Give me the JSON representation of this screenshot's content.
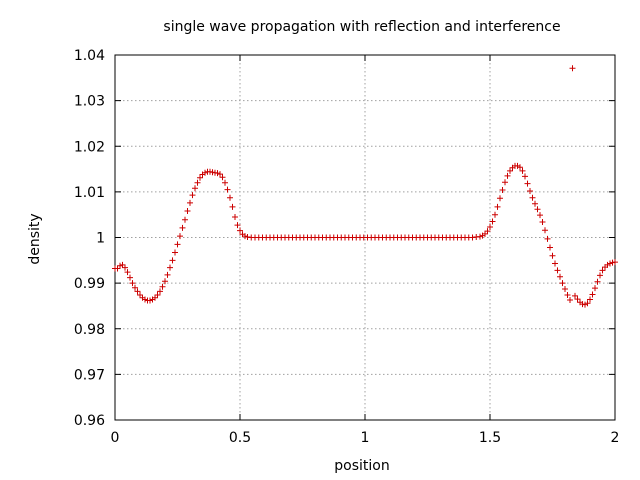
{
  "chart_data": {
    "type": "scatter",
    "title": "single wave propagation with reflection and interference",
    "xlabel": "position",
    "ylabel": "density",
    "xlim": [
      0,
      2
    ],
    "ylim": [
      0.96,
      1.04
    ],
    "xticks": [
      "0",
      "0.5",
      "1",
      "1.5",
      "2"
    ],
    "yticks": [
      "0.96",
      "0.97",
      "0.98",
      "0.99",
      "1",
      "1.01",
      "1.02",
      "1.03",
      "1.04"
    ],
    "grid": true,
    "marker": "+",
    "marker_color": "#cc0000",
    "series": [
      {
        "points": [
          [
            0.0,
            0.9932
          ],
          [
            0.01,
            0.9932
          ],
          [
            0.02,
            0.9938
          ],
          [
            0.03,
            0.994
          ],
          [
            0.04,
            0.9934
          ],
          [
            0.05,
            0.9924
          ],
          [
            0.06,
            0.9912
          ],
          [
            0.07,
            0.99
          ],
          [
            0.08,
            0.989
          ],
          [
            0.09,
            0.9882
          ],
          [
            0.1,
            0.9874
          ],
          [
            0.11,
            0.9868
          ],
          [
            0.12,
            0.9864
          ],
          [
            0.13,
            0.9862
          ],
          [
            0.14,
            0.9862
          ],
          [
            0.15,
            0.9864
          ],
          [
            0.16,
            0.9868
          ],
          [
            0.17,
            0.9874
          ],
          [
            0.18,
            0.9882
          ],
          [
            0.19,
            0.9892
          ],
          [
            0.2,
            0.9904
          ],
          [
            0.21,
            0.9918
          ],
          [
            0.22,
            0.9934
          ],
          [
            0.23,
            0.995
          ],
          [
            0.24,
            0.9967
          ],
          [
            0.25,
            0.9985
          ],
          [
            0.26,
            1.0003
          ],
          [
            0.27,
            1.0021
          ],
          [
            0.28,
            1.0039
          ],
          [
            0.29,
            1.0058
          ],
          [
            0.3,
            1.0076
          ],
          [
            0.31,
            1.0093
          ],
          [
            0.32,
            1.0108
          ],
          [
            0.33,
            1.012
          ],
          [
            0.34,
            1.0131
          ],
          [
            0.35,
            1.0138
          ],
          [
            0.36,
            1.0142
          ],
          [
            0.37,
            1.0144
          ],
          [
            0.38,
            1.0144
          ],
          [
            0.39,
            1.0143
          ],
          [
            0.4,
            1.0142
          ],
          [
            0.41,
            1.0141
          ],
          [
            0.42,
            1.0139
          ],
          [
            0.43,
            1.0132
          ],
          [
            0.44,
            1.012
          ],
          [
            0.45,
            1.0105
          ],
          [
            0.46,
            1.0087
          ],
          [
            0.47,
            1.0067
          ],
          [
            0.48,
            1.0045
          ],
          [
            0.49,
            1.0027
          ],
          [
            0.5,
            1.0015
          ],
          [
            0.51,
            1.0007
          ],
          [
            0.52,
            1.0003
          ],
          [
            0.53,
            1.0001
          ],
          [
            0.545,
            1.0
          ],
          [
            0.56,
            1.0
          ],
          [
            0.575,
            1.0
          ],
          [
            0.59,
            1.0
          ],
          [
            0.605,
            1.0
          ],
          [
            0.62,
            1.0
          ],
          [
            0.635,
            1.0
          ],
          [
            0.65,
            1.0
          ],
          [
            0.665,
            1.0
          ],
          [
            0.68,
            1.0
          ],
          [
            0.695,
            1.0
          ],
          [
            0.71,
            1.0
          ],
          [
            0.725,
            1.0
          ],
          [
            0.74,
            1.0
          ],
          [
            0.755,
            1.0
          ],
          [
            0.77,
            1.0
          ],
          [
            0.785,
            1.0
          ],
          [
            0.8,
            1.0
          ],
          [
            0.815,
            1.0
          ],
          [
            0.83,
            1.0
          ],
          [
            0.845,
            1.0
          ],
          [
            0.86,
            1.0
          ],
          [
            0.875,
            1.0
          ],
          [
            0.89,
            1.0
          ],
          [
            0.905,
            1.0
          ],
          [
            0.92,
            1.0
          ],
          [
            0.935,
            1.0
          ],
          [
            0.95,
            1.0
          ],
          [
            0.965,
            1.0
          ],
          [
            0.98,
            1.0
          ],
          [
            0.995,
            1.0
          ],
          [
            1.01,
            1.0
          ],
          [
            1.025,
            1.0
          ],
          [
            1.04,
            1.0
          ],
          [
            1.055,
            1.0
          ],
          [
            1.07,
            1.0
          ],
          [
            1.085,
            1.0
          ],
          [
            1.1,
            1.0
          ],
          [
            1.115,
            1.0
          ],
          [
            1.13,
            1.0
          ],
          [
            1.145,
            1.0
          ],
          [
            1.16,
            1.0
          ],
          [
            1.175,
            1.0
          ],
          [
            1.19,
            1.0
          ],
          [
            1.205,
            1.0
          ],
          [
            1.22,
            1.0
          ],
          [
            1.235,
            1.0
          ],
          [
            1.25,
            1.0
          ],
          [
            1.265,
            1.0
          ],
          [
            1.28,
            1.0
          ],
          [
            1.295,
            1.0
          ],
          [
            1.31,
            1.0
          ],
          [
            1.325,
            1.0
          ],
          [
            1.34,
            1.0
          ],
          [
            1.355,
            1.0
          ],
          [
            1.37,
            1.0
          ],
          [
            1.385,
            1.0
          ],
          [
            1.4,
            1.0
          ],
          [
            1.415,
            1.0
          ],
          [
            1.43,
            1.0
          ],
          [
            1.445,
            1.0001
          ],
          [
            1.46,
            1.0002
          ],
          [
            1.47,
            1.0004
          ],
          [
            1.48,
            1.0008
          ],
          [
            1.49,
            1.0014
          ],
          [
            1.5,
            1.0023
          ],
          [
            1.51,
            1.0035
          ],
          [
            1.52,
            1.005
          ],
          [
            1.53,
            1.0067
          ],
          [
            1.54,
            1.0086
          ],
          [
            1.55,
            1.0104
          ],
          [
            1.56,
            1.0121
          ],
          [
            1.57,
            1.0135
          ],
          [
            1.58,
            1.0146
          ],
          [
            1.59,
            1.0153
          ],
          [
            1.6,
            1.0157
          ],
          [
            1.61,
            1.0157
          ],
          [
            1.62,
            1.0154
          ],
          [
            1.63,
            1.0146
          ],
          [
            1.64,
            1.0134
          ],
          [
            1.65,
            1.0118
          ],
          [
            1.66,
            1.0102
          ],
          [
            1.67,
            1.0087
          ],
          [
            1.68,
            1.0074
          ],
          [
            1.69,
            1.0062
          ],
          [
            1.7,
            1.0049
          ],
          [
            1.71,
            1.0034
          ],
          [
            1.72,
            1.0016
          ],
          [
            1.73,
            0.9997
          ],
          [
            1.74,
            0.9978
          ],
          [
            1.75,
            0.996
          ],
          [
            1.76,
            0.9943
          ],
          [
            1.77,
            0.9928
          ],
          [
            1.78,
            0.9914
          ],
          [
            1.79,
            0.99
          ],
          [
            1.8,
            0.9887
          ],
          [
            1.81,
            0.9874
          ],
          [
            1.82,
            0.9863
          ],
          [
            1.83,
            1.0371
          ],
          [
            1.84,
            0.9872
          ],
          [
            1.85,
            0.9865
          ],
          [
            1.86,
            0.9858
          ],
          [
            1.87,
            0.9854
          ],
          [
            1.88,
            0.9853
          ],
          [
            1.89,
            0.9856
          ],
          [
            1.9,
            0.9864
          ],
          [
            1.91,
            0.9875
          ],
          [
            1.92,
            0.9889
          ],
          [
            1.93,
            0.9903
          ],
          [
            1.94,
            0.9917
          ],
          [
            1.95,
            0.9928
          ],
          [
            1.96,
            0.9935
          ],
          [
            1.97,
            0.994
          ],
          [
            1.98,
            0.9943
          ],
          [
            1.99,
            0.9945
          ],
          [
            2.0,
            0.9946
          ]
        ]
      }
    ]
  }
}
